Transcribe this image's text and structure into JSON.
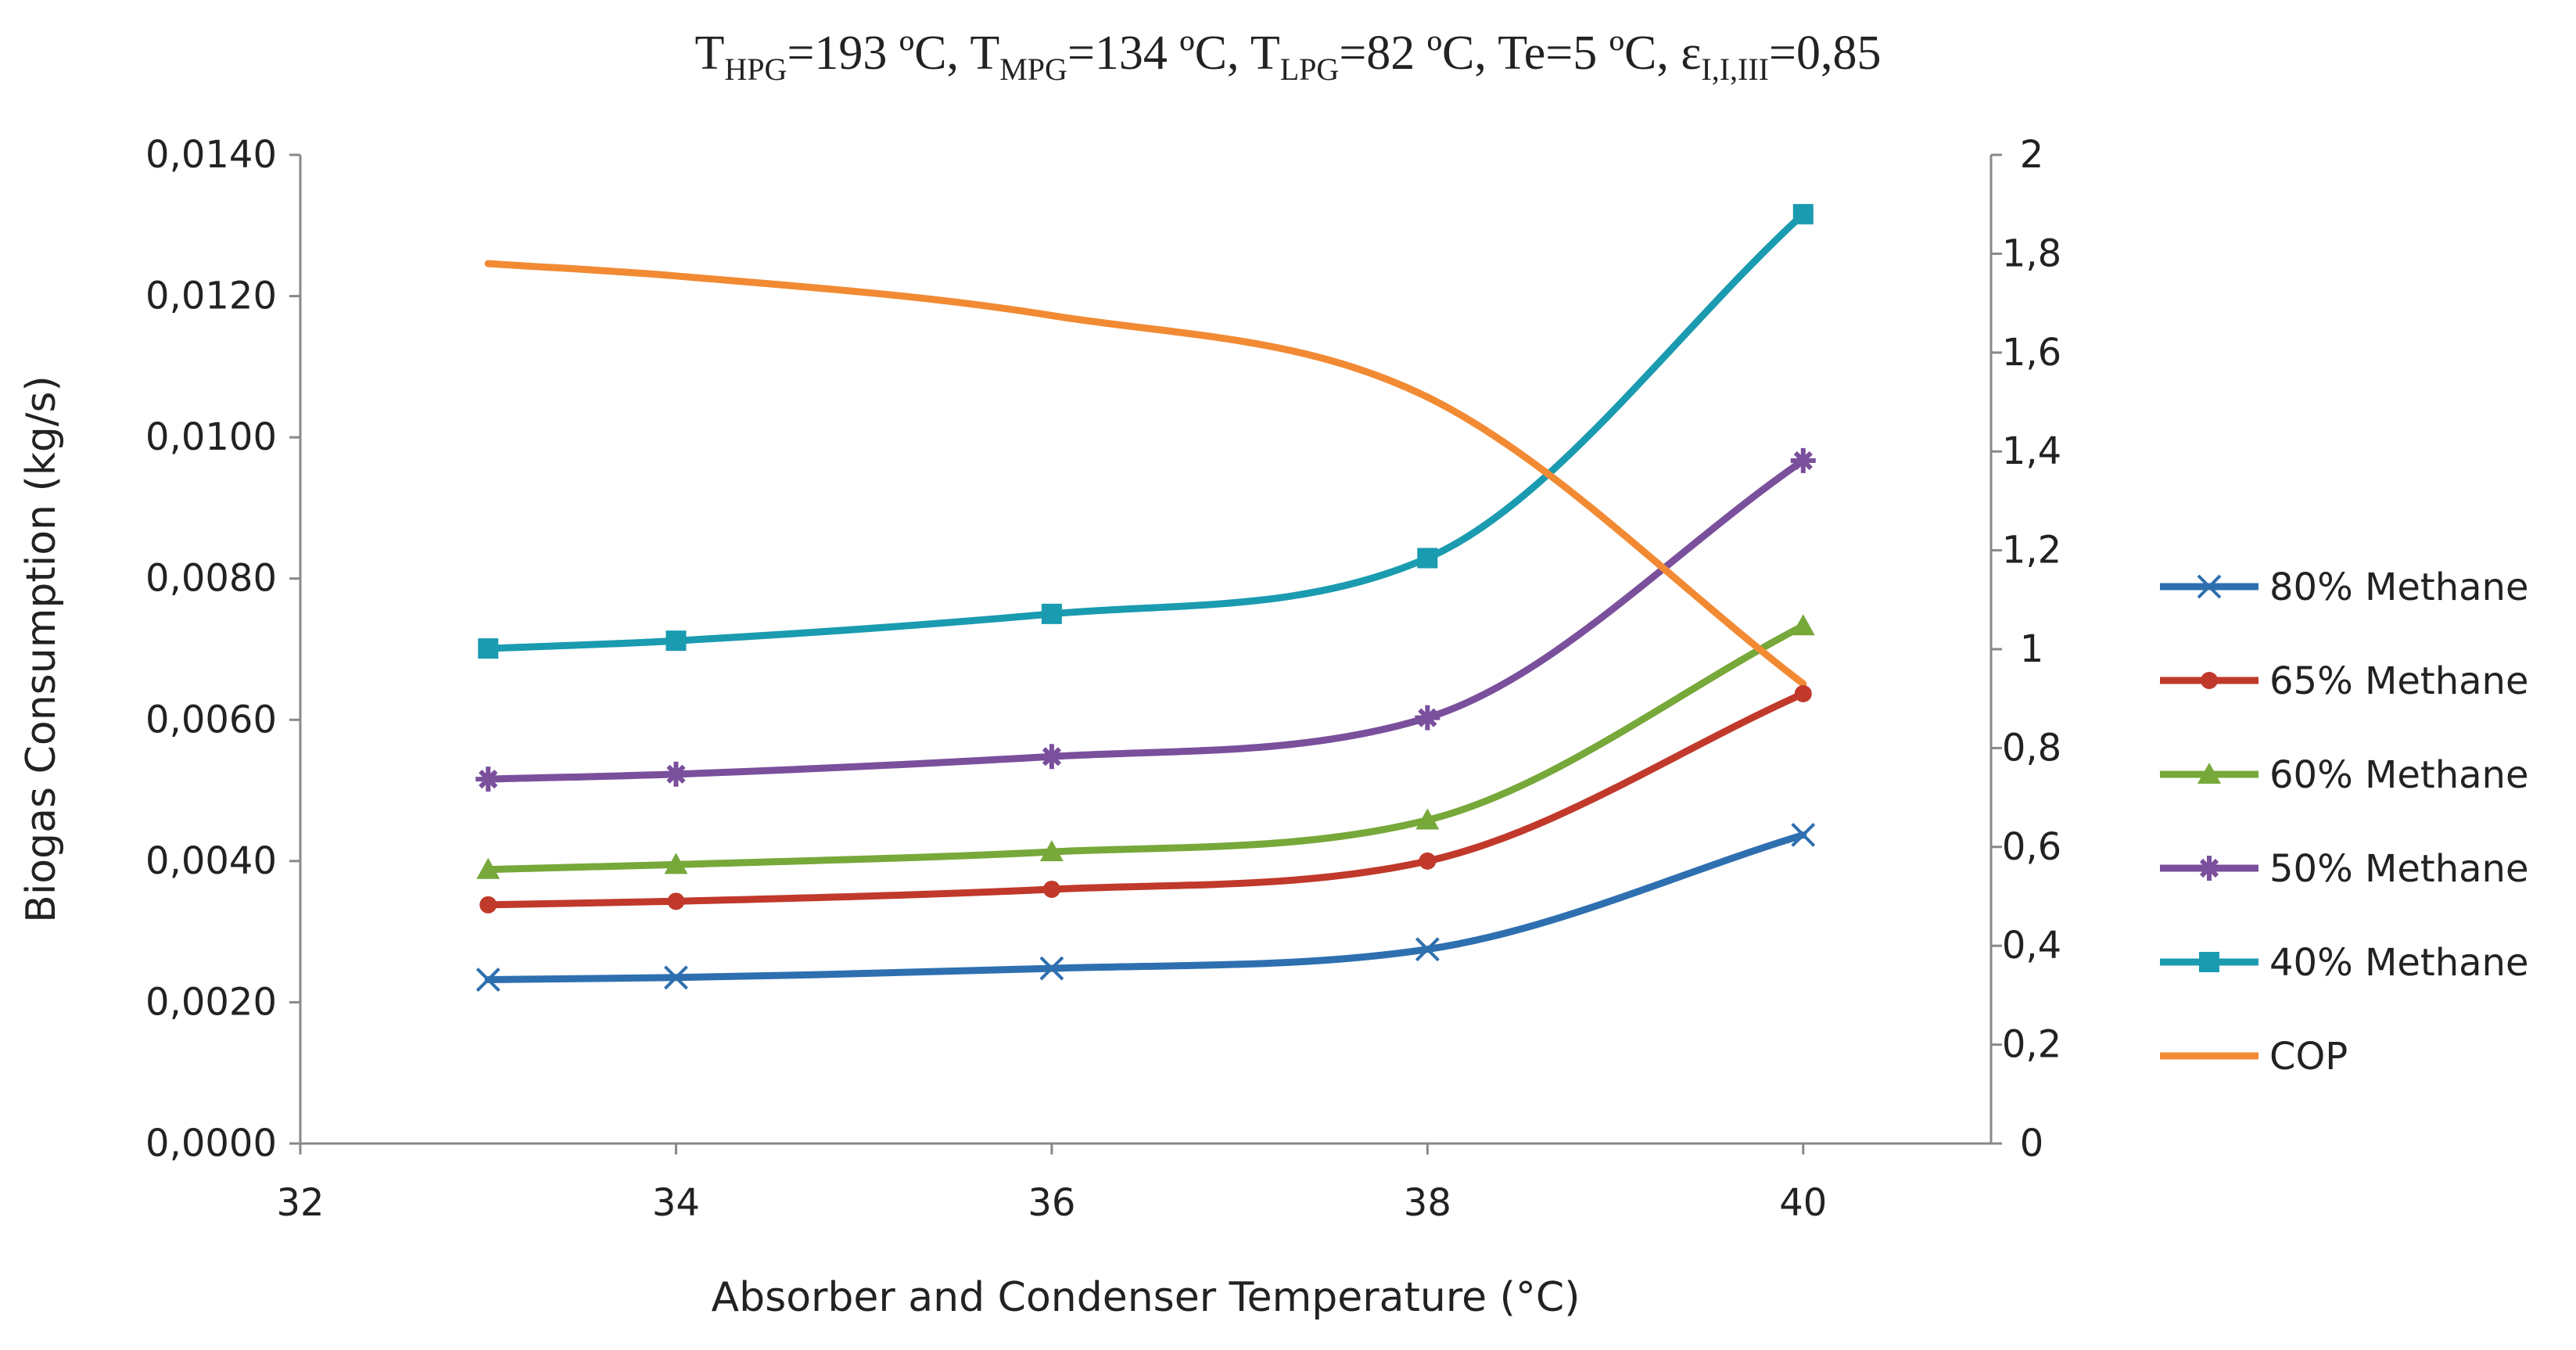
{
  "chart_data": {
    "type": "line",
    "title": {
      "segments": [
        {
          "text": "T",
          "sub": false
        },
        {
          "text": "HPG",
          "sub": true
        },
        {
          "text": "=193 ºC, T",
          "sub": false
        },
        {
          "text": "MPG",
          "sub": true
        },
        {
          "text": "=134 ºC, T",
          "sub": false
        },
        {
          "text": "LPG",
          "sub": true
        },
        {
          "text": "=82 ºC, Te=5 ºC, ε",
          "sub": false
        },
        {
          "text": "I,I,III",
          "sub": true
        },
        {
          "text": "=0,85",
          "sub": false
        }
      ]
    },
    "xlabel": "Absorber and Condenser Temperature (°C)",
    "ylabel": "Biogas Consumption (kg/s)",
    "xlim": [
      32,
      41
    ],
    "ylim": [
      0,
      0.014
    ],
    "y2lim": [
      0,
      2
    ],
    "xticks": [
      32,
      34,
      36,
      38,
      40
    ],
    "xtick_labels": [
      "32",
      "34",
      "36",
      "38",
      "40"
    ],
    "yticks": [
      0,
      0.002,
      0.004,
      0.006,
      0.008,
      0.01,
      0.012,
      0.014
    ],
    "ytick_labels": [
      "0,0000",
      "0,0020",
      "0,0040",
      "0,0060",
      "0,0080",
      "0,0100",
      "0,0120",
      "0,0140"
    ],
    "y2ticks": [
      0,
      0.2,
      0.4,
      0.6,
      0.8,
      1,
      1.2,
      1.4,
      1.6,
      1.8,
      2
    ],
    "y2tick_labels": [
      "0",
      "0,2",
      "0,4",
      "0,6",
      "0,8",
      "1",
      "1,2",
      "1,4",
      "1,6",
      "1,8",
      "2"
    ],
    "grid": false,
    "legend_position": "right",
    "x": [
      33,
      34,
      36,
      38,
      40
    ],
    "series": [
      {
        "name": "80% Methane",
        "axis": "left",
        "color": "#2e6fb0",
        "marker": "x",
        "values": [
          0.00232,
          0.00235,
          0.00248,
          0.00275,
          0.00437
        ]
      },
      {
        "name": "65% Methane",
        "axis": "left",
        "color": "#c0392b",
        "marker": "circle",
        "values": [
          0.00338,
          0.00343,
          0.0036,
          0.004,
          0.00637
        ]
      },
      {
        "name": "60% Methane",
        "axis": "left",
        "color": "#77a83a",
        "marker": "triangle",
        "values": [
          0.00388,
          0.00395,
          0.00413,
          0.00458,
          0.00733
        ]
      },
      {
        "name": "50% Methane",
        "axis": "left",
        "color": "#7a4f9c",
        "marker": "star",
        "values": [
          0.00516,
          0.00523,
          0.00548,
          0.00603,
          0.00967
        ]
      },
      {
        "name": "40% Methane",
        "axis": "left",
        "color": "#1a9bb0",
        "marker": "square",
        "values": [
          0.00701,
          0.00712,
          0.0075,
          0.00829,
          0.01316
        ]
      },
      {
        "name": "COP",
        "axis": "right",
        "color": "#f28a33",
        "marker": "none",
        "values": [
          1.78,
          1.755,
          1.675,
          1.51,
          0.93
        ]
      }
    ]
  }
}
